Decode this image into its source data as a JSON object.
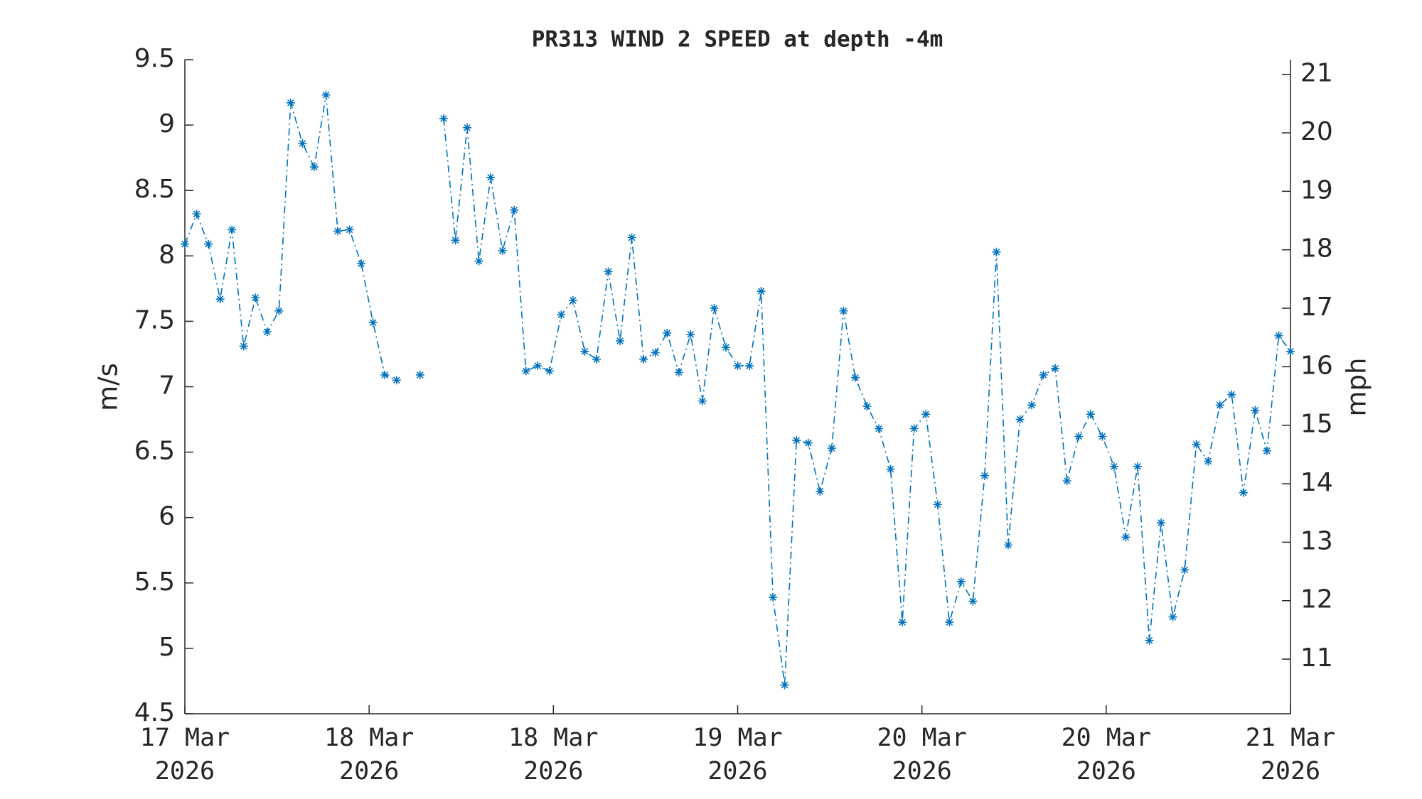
{
  "chart_data": {
    "type": "line",
    "title": "PR313 WIND 2 SPEED at depth -4m",
    "ylabel": "m/s",
    "y2label": "mph",
    "xlim": [
      0,
      94
    ],
    "xticks": [
      {
        "value": 0,
        "label": "17 Mar\n2026"
      },
      {
        "value": 15.667,
        "label": "18 Mar\n2026"
      },
      {
        "value": 31.333,
        "label": "18 Mar\n2026"
      },
      {
        "value": 47,
        "label": "19 Mar\n2026"
      },
      {
        "value": 62.667,
        "label": "20 Mar\n2026"
      },
      {
        "value": 78.333,
        "label": "20 Mar\n2026"
      },
      {
        "value": 94,
        "label": "21 Mar\n2026"
      }
    ],
    "ylim": [
      4.5,
      9.5
    ],
    "yticks": [
      4.5,
      5,
      5.5,
      6,
      6.5,
      7,
      7.5,
      8,
      8.5,
      9,
      9.5
    ],
    "y2lim": [
      10.066,
      21.251
    ],
    "y2ticks": [
      11,
      12,
      13,
      14,
      15,
      16,
      17,
      18,
      19,
      20,
      21
    ],
    "x": [
      0,
      1,
      2,
      3,
      4,
      5,
      6,
      7,
      8,
      9,
      10,
      11,
      12,
      13,
      14,
      15,
      16,
      17,
      18,
      19,
      20,
      21,
      22,
      23,
      24,
      25,
      26,
      27,
      28,
      29,
      30,
      31,
      32,
      33,
      34,
      35,
      36,
      37,
      38,
      39,
      40,
      41,
      42,
      43,
      44,
      45,
      46,
      47,
      48,
      49,
      50,
      51,
      52,
      53,
      54,
      55,
      56,
      57,
      58,
      59,
      60,
      61,
      62,
      63,
      64,
      65,
      66,
      67,
      68,
      69,
      70,
      71,
      72,
      73,
      74,
      75,
      76,
      77,
      78,
      79,
      80,
      81,
      82,
      83,
      84,
      85,
      86,
      87,
      88,
      89,
      90,
      91,
      92,
      93,
      94
    ],
    "series": [
      {
        "color": "#0072bd",
        "values": [
          8.09,
          8.32,
          8.09,
          7.67,
          8.2,
          7.31,
          7.68,
          7.42,
          7.58,
          9.17,
          8.86,
          8.68,
          9.23,
          8.19,
          8.2,
          7.94,
          7.49,
          7.09,
          7.05,
          null,
          7.09,
          null,
          9.05,
          8.12,
          8.98,
          7.96,
          8.6,
          8.04,
          8.35,
          7.12,
          7.16,
          7.12,
          7.55,
          7.66,
          7.27,
          7.21,
          7.88,
          7.35,
          8.14,
          7.21,
          7.26,
          7.41,
          7.11,
          7.4,
          6.89,
          7.6,
          7.3,
          7.16,
          7.16,
          7.73,
          5.39,
          4.72,
          6.59,
          6.57,
          6.2,
          6.53,
          7.58,
          7.07,
          6.85,
          6.68,
          6.37,
          5.2,
          6.68,
          6.79,
          6.1,
          5.2,
          5.51,
          5.36,
          6.32,
          8.03,
          5.79,
          6.75,
          6.86,
          7.09,
          7.14,
          6.28,
          6.62,
          6.79,
          6.62,
          6.39,
          5.85,
          6.39,
          5.06,
          5.96,
          5.24,
          5.6,
          6.56,
          6.43,
          6.86,
          6.94,
          6.19,
          6.82,
          6.51,
          7.39,
          7.27
        ]
      }
    ]
  }
}
